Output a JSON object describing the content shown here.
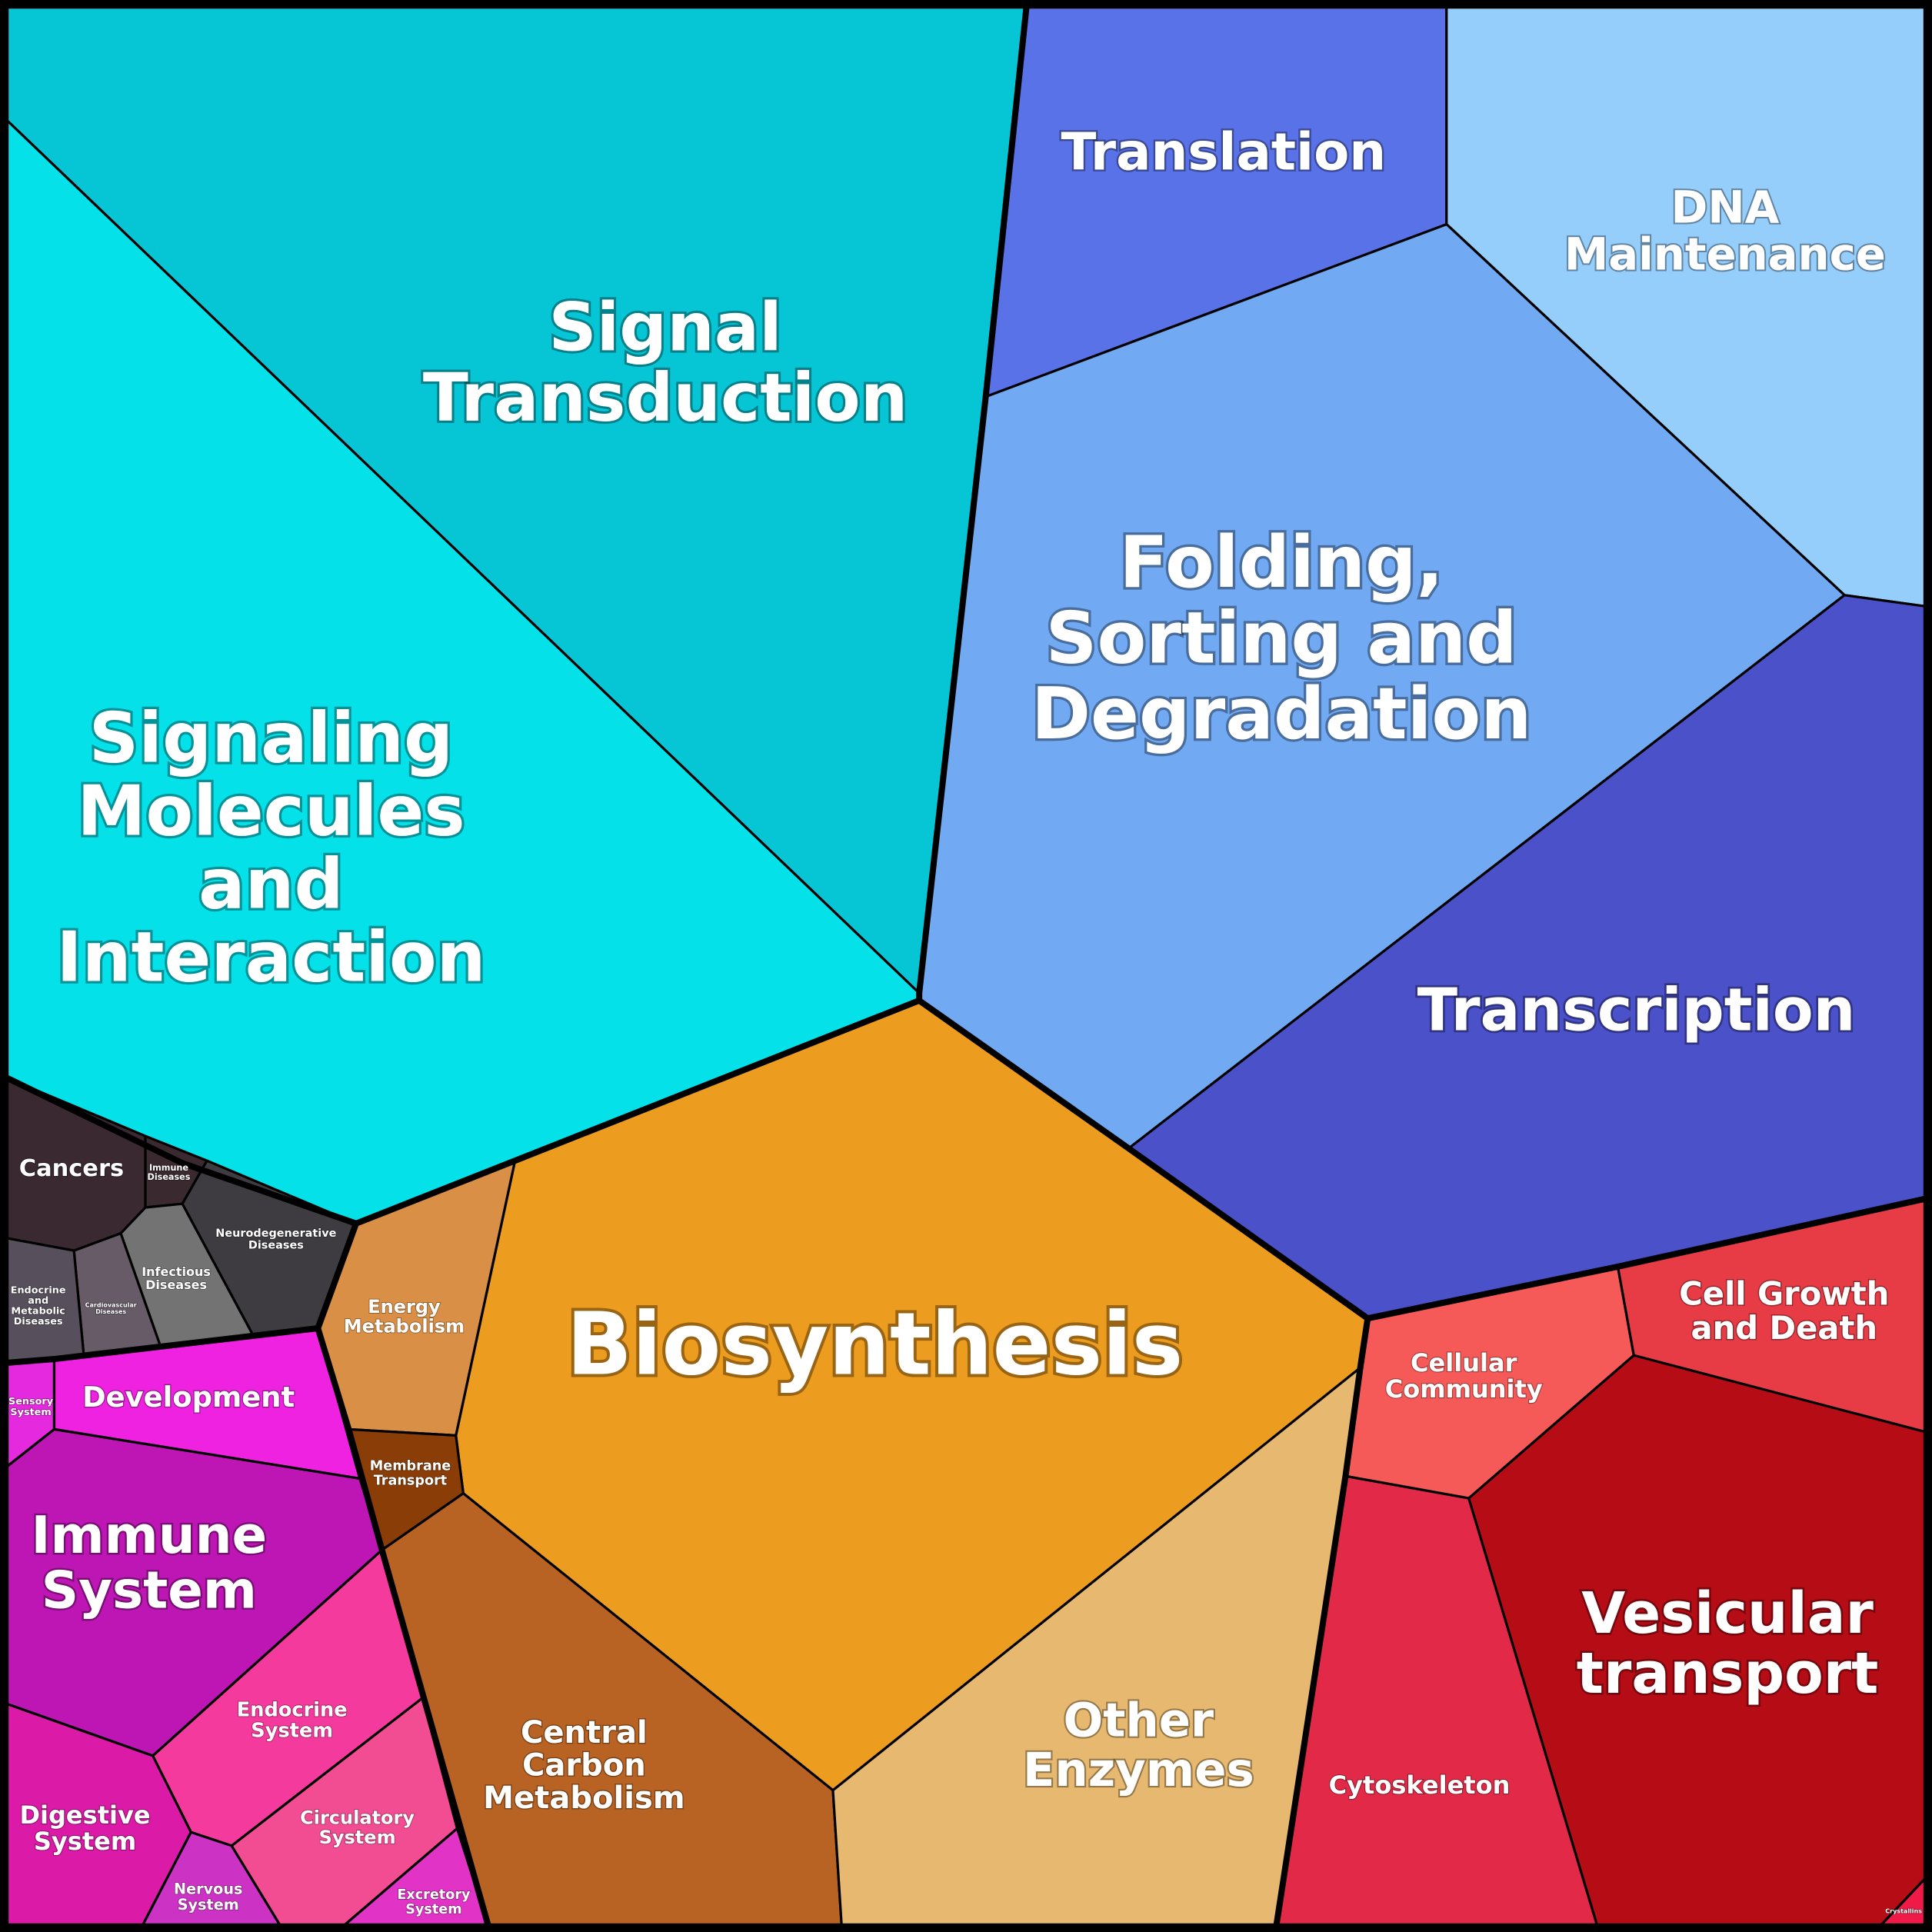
{
  "cells": [
    {
      "lines": [
        "Signal",
        "Transduction"
      ]
    },
    {
      "lines": [
        "Signaling",
        "Molecules",
        "and",
        "Interaction"
      ]
    },
    {
      "lines": [
        "Translation"
      ]
    },
    {
      "lines": [
        "DNA",
        "Maintenance"
      ]
    },
    {
      "lines": [
        "Folding,",
        "Sorting and",
        "Degradation"
      ]
    },
    {
      "lines": [
        "Transcription"
      ]
    },
    {
      "lines": [
        "Biosynthesis"
      ]
    },
    {
      "lines": [
        "Energy",
        "Metabolism"
      ]
    },
    {
      "lines": [
        "Membrane",
        "Transport"
      ]
    },
    {
      "lines": [
        "Central",
        "Carbon",
        "Metabolism"
      ]
    },
    {
      "lines": [
        "Other",
        "Enzymes"
      ]
    },
    {
      "lines": [
        "Cellular",
        "Community"
      ]
    },
    {
      "lines": [
        "Cell Growth",
        "and Death"
      ]
    },
    {
      "lines": [
        "Vesicular",
        "transport"
      ]
    },
    {
      "lines": [
        "Crystallins"
      ]
    },
    {
      "lines": [
        "Cytoskeleton"
      ]
    },
    {
      "lines": [
        "Cancers"
      ]
    },
    {
      "lines": [
        "Immune",
        "Diseases"
      ]
    },
    {
      "lines": [
        "Neurodegenerative",
        "Diseases"
      ]
    },
    {
      "lines": [
        "Infectious",
        "Diseases"
      ]
    },
    {
      "lines": [
        "Cardiovascular",
        "Diseases"
      ]
    },
    {
      "lines": [
        "Endocrine",
        "and",
        "Metabolic",
        "Diseases"
      ]
    },
    {
      "lines": [
        "Sensory",
        "System"
      ]
    },
    {
      "lines": [
        "Development"
      ]
    },
    {
      "lines": [
        "Immune",
        "System"
      ]
    },
    {
      "lines": [
        "Endocrine",
        "System"
      ]
    },
    {
      "lines": [
        "Digestive",
        "System"
      ]
    },
    {
      "lines": [
        "Nervous",
        "System"
      ]
    },
    {
      "lines": [
        "Circulatory",
        "System"
      ]
    },
    {
      "lines": [
        "Excretory",
        "System"
      ]
    }
  ]
}
